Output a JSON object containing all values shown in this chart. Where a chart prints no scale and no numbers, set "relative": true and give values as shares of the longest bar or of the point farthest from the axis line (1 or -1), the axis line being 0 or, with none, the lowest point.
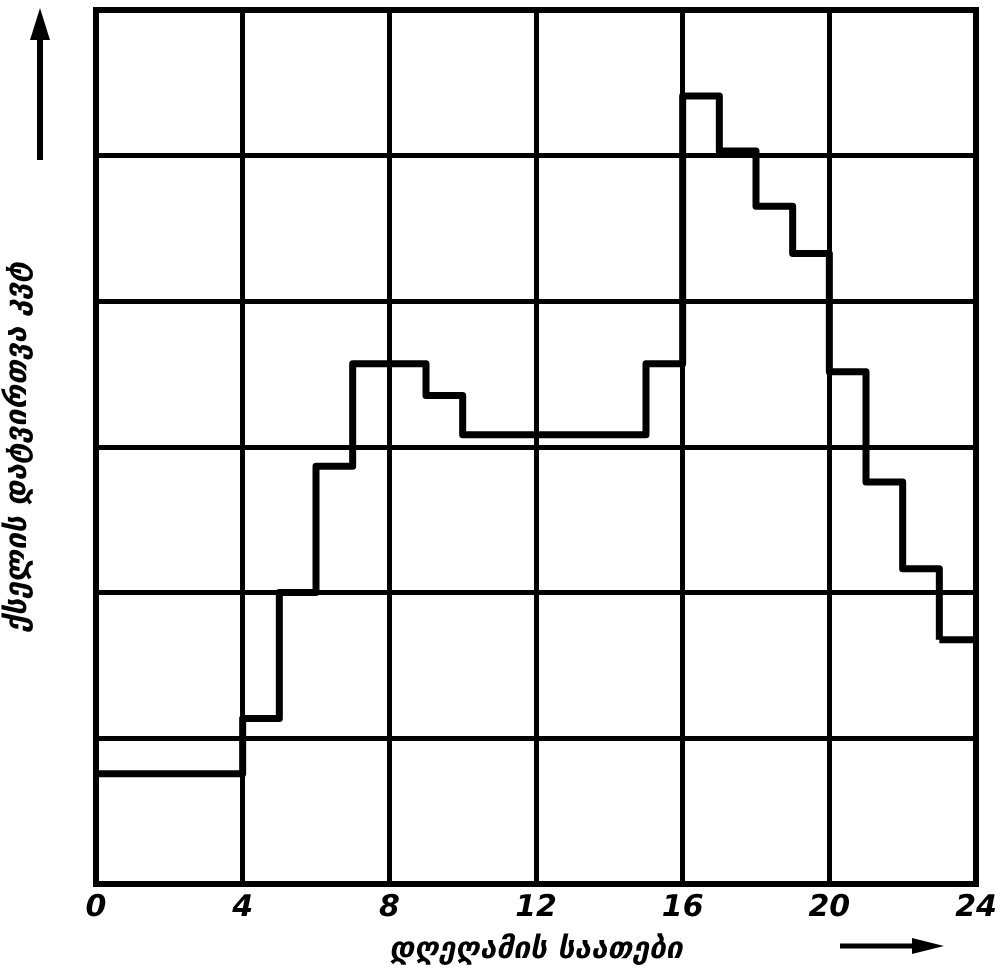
{
  "chart_data": {
    "type": "step",
    "xlabel": "დღეღამის საათები",
    "ylabel": "ქსელის დატვირთვა კვტ",
    "relative": true,
    "x": [
      0,
      4,
      5,
      6,
      7,
      9,
      10,
      15,
      16,
      17,
      18,
      19,
      20,
      21,
      22,
      23
    ],
    "values": [
      0.14,
      0.21,
      0.37,
      0.53,
      0.66,
      0.62,
      0.57,
      0.66,
      1,
      0.93,
      0.86,
      0.8,
      0.65,
      0.51,
      0.4,
      0.31
    ],
    "color": "#000000",
    "xlim": [
      0,
      24
    ],
    "xticks": [
      0,
      4,
      8,
      12,
      16,
      20,
      24
    ],
    "grid": true,
    "legend": false,
    "marker": "none",
    "line_style": "solid"
  }
}
